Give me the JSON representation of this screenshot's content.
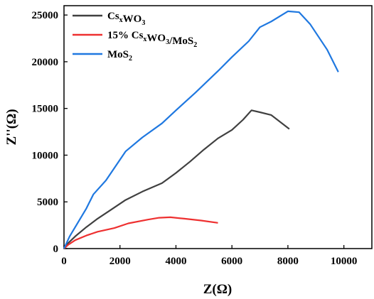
{
  "chart_data": {
    "type": "line",
    "xlabel": "Z(Ω)",
    "ylabel": "Z''(Ω)",
    "xlim": [
      0,
      11000
    ],
    "ylim": [
      0,
      26000
    ],
    "x_ticks": [
      0,
      2000,
      4000,
      6000,
      8000,
      10000
    ],
    "y_ticks": [
      0,
      5000,
      10000,
      15000,
      20000,
      25000
    ],
    "legend_position": "top-left",
    "grid": false,
    "series": [
      {
        "name": "CsxWO3",
        "name_parts": [
          {
            "text": "Cs",
            "sub": false
          },
          {
            "text": "x",
            "sub": true
          },
          {
            "text": "WO",
            "sub": false
          },
          {
            "text": "3",
            "sub": true
          }
        ],
        "color": "#404040",
        "points": [
          [
            0,
            0
          ],
          [
            120,
            500
          ],
          [
            400,
            1300
          ],
          [
            800,
            2300
          ],
          [
            1200,
            3200
          ],
          [
            1700,
            4200
          ],
          [
            2200,
            5200
          ],
          [
            2800,
            6100
          ],
          [
            3500,
            7000
          ],
          [
            4000,
            8100
          ],
          [
            4500,
            9300
          ],
          [
            5000,
            10600
          ],
          [
            5500,
            11800
          ],
          [
            6000,
            12700
          ],
          [
            6400,
            13800
          ],
          [
            6700,
            14800
          ],
          [
            7000,
            14600
          ],
          [
            7400,
            14300
          ],
          [
            8050,
            12800
          ]
        ]
      },
      {
        "name": "15% CsxWO3/MoS2",
        "name_parts": [
          {
            "text": "15% Cs",
            "sub": false
          },
          {
            "text": "x",
            "sub": true
          },
          {
            "text": "WO",
            "sub": false
          },
          {
            "text": "3",
            "sub": true
          },
          {
            "text": "/MoS",
            "sub": false
          },
          {
            "text": "2",
            "sub": true
          }
        ],
        "color": "#ee3030",
        "points": [
          [
            0,
            0
          ],
          [
            150,
            400
          ],
          [
            400,
            900
          ],
          [
            800,
            1400
          ],
          [
            1200,
            1800
          ],
          [
            1800,
            2200
          ],
          [
            2300,
            2700
          ],
          [
            3000,
            3100
          ],
          [
            3400,
            3300
          ],
          [
            3800,
            3350
          ],
          [
            4300,
            3200
          ],
          [
            4900,
            3000
          ],
          [
            5500,
            2750
          ]
        ]
      },
      {
        "name": "MoS2",
        "name_parts": [
          {
            "text": "MoS",
            "sub": false
          },
          {
            "text": "2",
            "sub": true
          }
        ],
        "color": "#1f78e0",
        "points": [
          [
            0,
            0
          ],
          [
            200,
            1300
          ],
          [
            500,
            2800
          ],
          [
            800,
            4300
          ],
          [
            1050,
            5800
          ],
          [
            1500,
            7300
          ],
          [
            2200,
            10400
          ],
          [
            2800,
            11900
          ],
          [
            3500,
            13400
          ],
          [
            4000,
            14800
          ],
          [
            4700,
            16700
          ],
          [
            5500,
            19000
          ],
          [
            6000,
            20500
          ],
          [
            6600,
            22200
          ],
          [
            7000,
            23700
          ],
          [
            7400,
            24300
          ],
          [
            8000,
            25400
          ],
          [
            8400,
            25300
          ],
          [
            8800,
            24000
          ],
          [
            9400,
            21300
          ],
          [
            9800,
            18900
          ]
        ]
      }
    ]
  }
}
